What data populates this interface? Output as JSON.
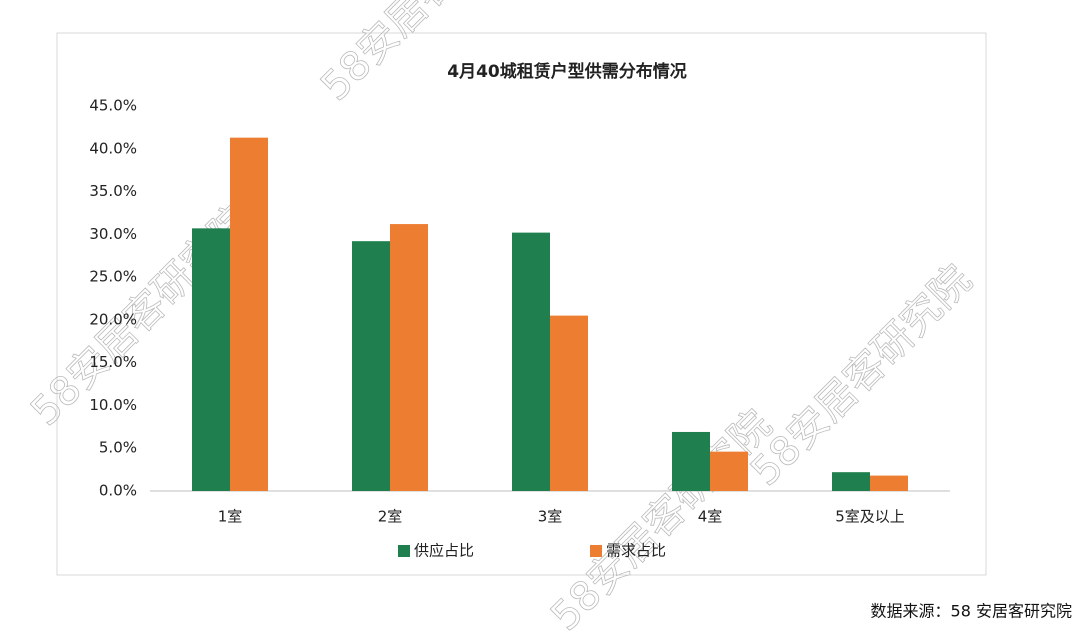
{
  "chart_data": {
    "type": "bar",
    "title": "4月40城租赁户型供需分布情况",
    "categories": [
      "1室",
      "2室",
      "3室",
      "4室",
      "5室及以上"
    ],
    "series": [
      {
        "name": "供应占比",
        "color": "#1f7f4f",
        "values": [
          30.7,
          29.2,
          30.2,
          6.9,
          2.2
        ]
      },
      {
        "name": "需求占比",
        "color": "#ed7d31",
        "values": [
          41.3,
          31.2,
          20.5,
          4.6,
          1.8
        ]
      }
    ],
    "ylim": [
      0,
      45
    ],
    "yticks": [
      {
        "value": 0,
        "label": "0.0%"
      },
      {
        "value": 5,
        "label": "5.0%"
      },
      {
        "value": 10,
        "label": "10.0%"
      },
      {
        "value": 15,
        "label": "15.0%"
      },
      {
        "value": 20,
        "label": "20.0%"
      },
      {
        "value": 25,
        "label": "25.0%"
      },
      {
        "value": 30,
        "label": "30.0%"
      },
      {
        "value": 35,
        "label": "35.0%"
      },
      {
        "value": 40,
        "label": "40.0%"
      },
      {
        "value": 45,
        "label": "45.0%"
      }
    ],
    "grid": false,
    "legend": "bottom"
  },
  "source": "数据来源：58 安居客研究院",
  "watermark": "58安居客研究院"
}
